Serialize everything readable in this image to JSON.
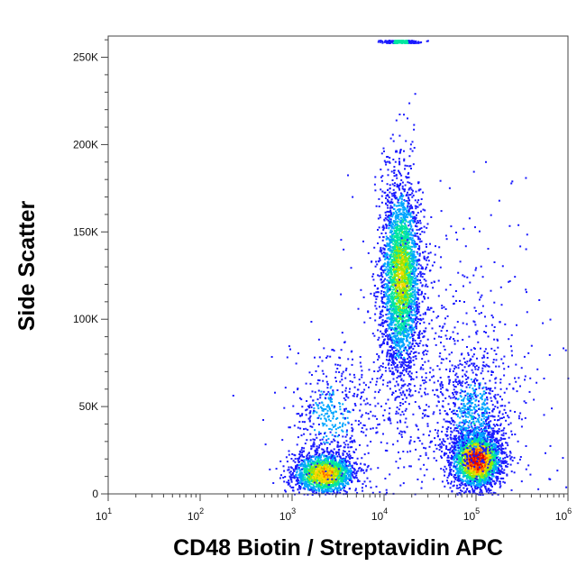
{
  "chart_data": {
    "type": "scatter",
    "title": "",
    "xlabel": "CD48 Biotin / Streptavidin APC",
    "ylabel": "Side Scatter",
    "x_scale": "log",
    "xlim": [
      10,
      1000000
    ],
    "ylim": [
      0,
      262144
    ],
    "grid": false,
    "legend": "none",
    "x_ticks": [
      {
        "value": 10,
        "base": "10",
        "exp": "1"
      },
      {
        "value": 100,
        "base": "10",
        "exp": "2"
      },
      {
        "value": 1000,
        "base": "10",
        "exp": "3"
      },
      {
        "value": 10000,
        "base": "10",
        "exp": "4"
      },
      {
        "value": 100000,
        "base": "10",
        "exp": "5"
      },
      {
        "value": 1000000,
        "base": "10",
        "exp": "6"
      }
    ],
    "y_ticks": [
      {
        "value": 0,
        "label": "0"
      },
      {
        "value": 50000,
        "label": "50K"
      },
      {
        "value": 100000,
        "label": "100K"
      },
      {
        "value": 150000,
        "label": "150K"
      },
      {
        "value": 200000,
        "label": "200K"
      },
      {
        "value": 250000,
        "label": "250K"
      }
    ],
    "density_colors": [
      "#1a1aff",
      "#00a5ff",
      "#00e6a0",
      "#9be600",
      "#ffd700",
      "#ff6a00",
      "#e00000"
    ],
    "populations": [
      {
        "x_center": 2200,
        "y_center": 12000,
        "x_spread_log": 0.17,
        "y_spread": 6000,
        "weight": 0.18,
        "peak_density": 0.72
      },
      {
        "x_center": 2600,
        "y_center": 45000,
        "x_spread_log": 0.22,
        "y_spread": 18000,
        "weight": 0.05,
        "peak_density": 0.2
      },
      {
        "x_center": 15000,
        "y_center": 125000,
        "x_spread_log": 0.11,
        "y_spread": 28000,
        "weight": 0.32,
        "peak_density": 0.55
      },
      {
        "x_center": 100000,
        "y_center": 20000,
        "x_spread_log": 0.13,
        "y_spread": 8000,
        "weight": 0.28,
        "peak_density": 1.0
      },
      {
        "x_center": 90000,
        "y_center": 45000,
        "x_spread_log": 0.17,
        "y_spread": 18000,
        "weight": 0.07,
        "peak_density": 0.25
      },
      {
        "x_center": 40000,
        "y_center": 60000,
        "x_spread_log": 0.55,
        "y_spread": 45000,
        "weight": 0.1,
        "peak_density": 0.05
      }
    ]
  }
}
